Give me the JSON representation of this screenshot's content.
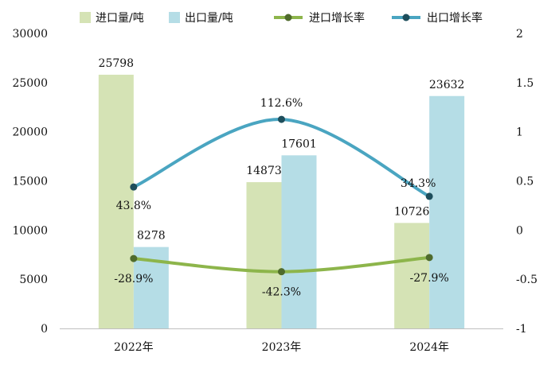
{
  "chart_data": {
    "type": "bar",
    "categories": [
      "2022年",
      "2023年",
      "2024年"
    ],
    "series": [
      {
        "name": "进口量/吨",
        "type": "bar",
        "axis": "left",
        "color": "#d5e3b5",
        "values": [
          25798,
          14873,
          10726
        ],
        "labels": [
          "25798",
          "14873",
          "10726"
        ]
      },
      {
        "name": "出口量/吨",
        "type": "bar",
        "axis": "left",
        "color": "#b5dde6",
        "values": [
          8278,
          17601,
          23632
        ],
        "labels": [
          "8278",
          "17601",
          "23632"
        ]
      },
      {
        "name": "进口增长率",
        "type": "line",
        "axis": "right",
        "color": "#8db54b",
        "marker_color": "#4f6b2c",
        "values": [
          -0.289,
          -0.423,
          -0.279
        ],
        "labels": [
          "-28.9%",
          "-42.3%",
          "-27.9%"
        ]
      },
      {
        "name": "出口增长率",
        "type": "line",
        "axis": "right",
        "color": "#4aa5c1",
        "marker_color": "#1e4e5c",
        "values": [
          0.438,
          1.126,
          0.343
        ],
        "labels": [
          "43.8%",
          "112.6%",
          "34.3%"
        ]
      }
    ],
    "y_left": {
      "lim": [
        0,
        30000
      ],
      "ticks": [
        "0",
        "5000",
        "10000",
        "15000",
        "20000",
        "25000",
        "30000"
      ]
    },
    "y_right": {
      "lim": [
        -1,
        2
      ],
      "ticks": [
        "-1",
        "-0.5",
        "0",
        "0.5",
        "1",
        "1.5",
        "2"
      ]
    },
    "legend_position": "top",
    "grid": false
  }
}
